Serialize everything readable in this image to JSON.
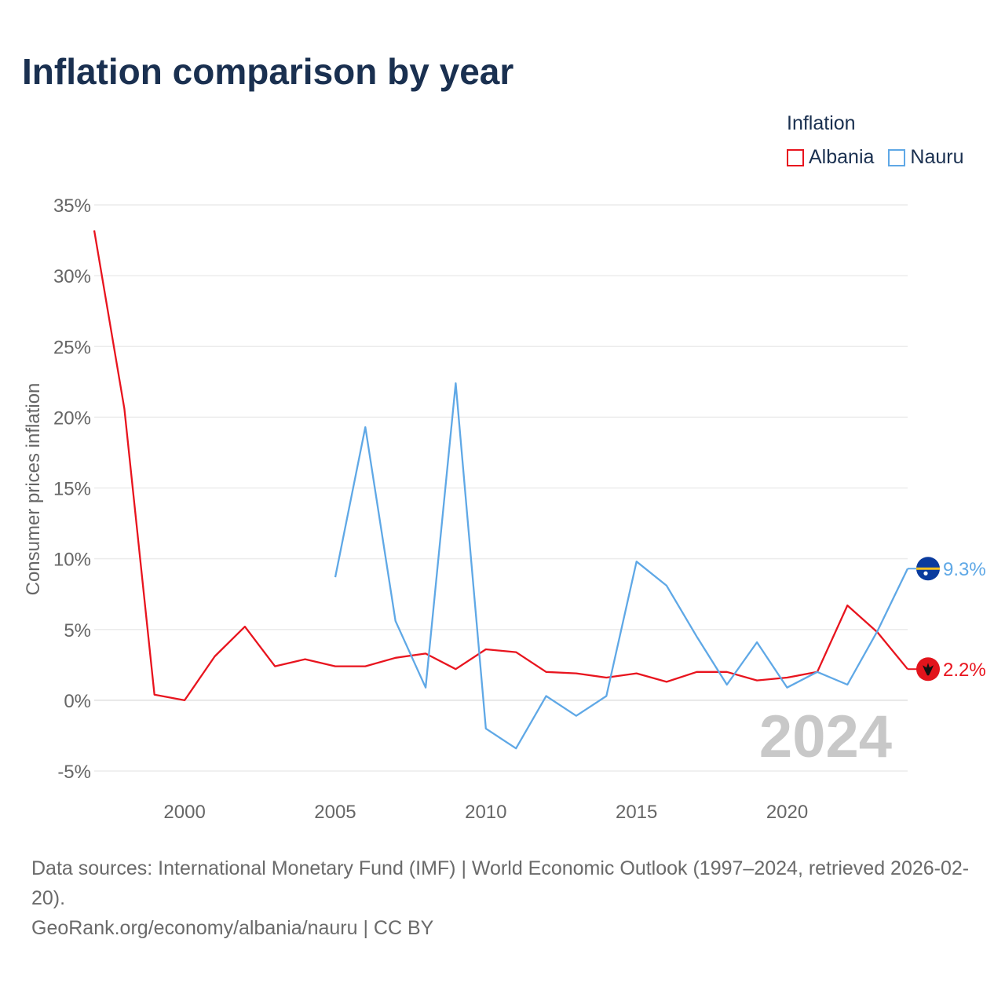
{
  "title": "Inflation comparison by year",
  "legend": {
    "title": "Inflation",
    "items": [
      {
        "label": "Albania",
        "color": "#e8141e"
      },
      {
        "label": "Nauru",
        "color": "#5fa8e6"
      }
    ]
  },
  "chart_data": {
    "type": "line",
    "title": "Inflation comparison by year",
    "xlabel": "",
    "ylabel": "Consumer prices inflation",
    "xlim": [
      1997,
      2024
    ],
    "ylim": [
      -5,
      35
    ],
    "xticks": [
      2000,
      2005,
      2010,
      2015,
      2020
    ],
    "yticks": [
      -5,
      0,
      5,
      10,
      15,
      20,
      25,
      30,
      35
    ],
    "ytick_labels": [
      "-5%",
      "0%",
      "5%",
      "10%",
      "15%",
      "20%",
      "25%",
      "30%",
      "35%"
    ],
    "grid": true,
    "legend_position": "top-right",
    "year_label": "2024",
    "series": [
      {
        "name": "Albania",
        "color": "#e8141e",
        "end_label": "2.2%",
        "x": [
          1997,
          1998,
          1999,
          2000,
          2001,
          2002,
          2003,
          2004,
          2005,
          2006,
          2007,
          2008,
          2009,
          2010,
          2011,
          2012,
          2013,
          2014,
          2015,
          2016,
          2017,
          2018,
          2019,
          2020,
          2021,
          2022,
          2023,
          2024
        ],
        "values": [
          33.2,
          20.6,
          0.4,
          0.0,
          3.1,
          5.2,
          2.4,
          2.9,
          2.4,
          2.4,
          3.0,
          3.3,
          2.2,
          3.6,
          3.4,
          2.0,
          1.9,
          1.6,
          1.9,
          1.3,
          2.0,
          2.0,
          1.4,
          1.6,
          2.0,
          6.7,
          4.8,
          2.2
        ]
      },
      {
        "name": "Nauru",
        "color": "#5fa8e6",
        "end_label": "9.3%",
        "x": [
          2005,
          2006,
          2007,
          2008,
          2009,
          2010,
          2011,
          2012,
          2013,
          2014,
          2015,
          2016,
          2017,
          2018,
          2019,
          2020,
          2021,
          2022,
          2023,
          2024
        ],
        "values": [
          8.7,
          19.3,
          5.6,
          0.9,
          22.4,
          -2.0,
          -3.4,
          0.3,
          -1.1,
          0.3,
          9.8,
          8.1,
          4.5,
          1.1,
          4.1,
          0.9,
          2.0,
          1.1,
          4.9,
          9.3
        ]
      }
    ]
  },
  "footer": {
    "sources": "Data sources: International Monetary Fund (IMF) | World Economic Outlook (1997–2024, retrieved 2026-02-20).",
    "credit": "GeoRank.org/economy/albania/nauru | CC BY"
  }
}
